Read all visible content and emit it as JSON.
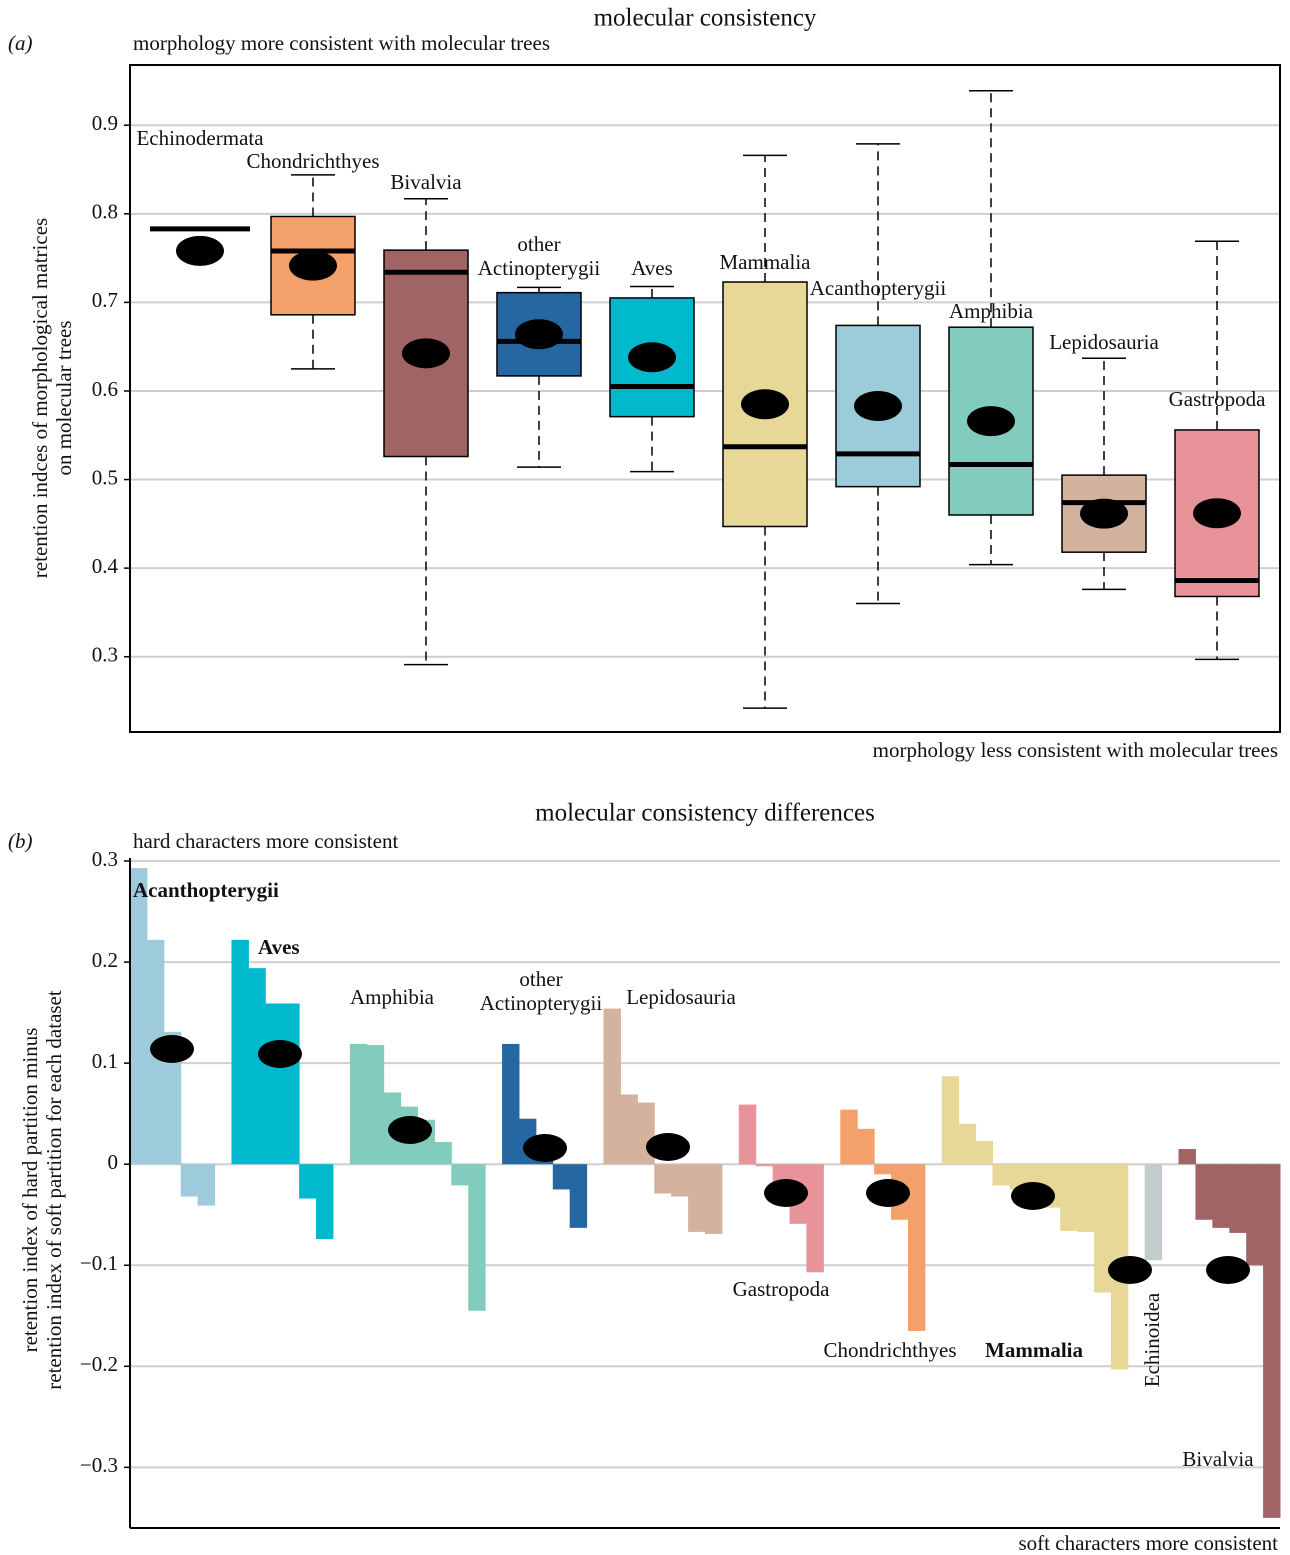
{
  "chart_data": [
    {
      "type": "box",
      "panel": "(a)",
      "title": "molecular consistency",
      "annotations": [
        "morphology more consistent with molecular trees",
        "morphology less consistent with molecular trees"
      ],
      "ylabel": "retention indces of morphological matrices\non molecular trees",
      "ylim": [
        0.215,
        0.968
      ],
      "yticks": [
        0.3,
        0.4,
        0.5,
        0.6,
        0.7,
        0.8,
        0.9
      ],
      "grid": true,
      "boxes": [
        {
          "name": "Echinodermata",
          "color": "#b9c6c6",
          "min": 0.783,
          "q1": 0.783,
          "median": 0.783,
          "q3": 0.783,
          "max": 0.783
        },
        {
          "name": "Chondrichthyes",
          "color": "#f4a06b",
          "min": 0.625,
          "q1": 0.686,
          "median": 0.758,
          "q3": 0.797,
          "max": 0.844
        },
        {
          "name": "Bivalvia",
          "color": "#a06464",
          "min": 0.291,
          "q1": 0.526,
          "median": 0.734,
          "q3": 0.759,
          "max": 0.817
        },
        {
          "name": "other\nActinopterygii",
          "color": "#2567a0",
          "min": 0.514,
          "q1": 0.617,
          "median": 0.656,
          "q3": 0.711,
          "max": 0.717
        },
        {
          "name": "Aves",
          "color": "#00b9cc",
          "min": 0.509,
          "q1": 0.571,
          "median": 0.605,
          "q3": 0.705,
          "max": 0.718
        },
        {
          "name": "Mammalia",
          "color": "#e8d898",
          "min": 0.242,
          "q1": 0.447,
          "median": 0.537,
          "q3": 0.723,
          "max": 0.866
        },
        {
          "name": "Acanthopterygii",
          "color": "#9ccbd9",
          "min": 0.36,
          "q1": 0.492,
          "median": 0.529,
          "q3": 0.674,
          "max": 0.879
        },
        {
          "name": "Amphibia",
          "color": "#82ccbd",
          "min": 0.404,
          "q1": 0.46,
          "median": 0.517,
          "q3": 0.672,
          "max": 0.939
        },
        {
          "name": "Lepidosauria",
          "color": "#d4b39e",
          "min": 0.376,
          "q1": 0.418,
          "median": 0.474,
          "q3": 0.505,
          "max": 0.637
        },
        {
          "name": "Gastropoda",
          "color": "#e8939a",
          "min": 0.297,
          "q1": 0.368,
          "median": 0.386,
          "q3": 0.556,
          "max": 0.769
        }
      ]
    },
    {
      "type": "bar",
      "panel": "(b)",
      "title": "molecular consistency differences",
      "annotations": [
        "hard characters more consistent",
        "soft characters more consistent"
      ],
      "ylabel": "retention index of hard partition minus\nretention index of soft partition for each dataset",
      "ylim": [
        -0.36,
        0.303
      ],
      "yticks": [
        {
          "value": -0.3,
          "label": "−0.3"
        },
        {
          "value": -0.2,
          "label": "−0.2"
        },
        {
          "value": -0.1,
          "label": "−0.1"
        },
        0,
        0.1,
        0.2,
        0.3
      ],
      "grid": true,
      "groups": [
        {
          "name": "Acanthopterygii",
          "color": "#9ecbdb",
          "bold": true,
          "values": [
            0.293,
            0.222,
            0.131,
            -0.032,
            -0.041
          ]
        },
        {
          "name": "Aves",
          "color": "#00b9cc",
          "bold": true,
          "values": [
            0.222,
            0.194,
            0.159,
            0.159,
            -0.034,
            -0.074
          ]
        },
        {
          "name": "Amphibia",
          "color": "#82ccbd",
          "bold": false,
          "values": [
            0.119,
            0.118,
            0.071,
            0.057,
            0.044,
            0.022,
            -0.021,
            -0.145
          ]
        },
        {
          "name": "other\nActinopterygii",
          "color": "#2567a0",
          "bold": false,
          "values": [
            0.119,
            0.045,
            0.018,
            -0.025,
            -0.063
          ]
        },
        {
          "name": "Lepidosauria",
          "color": "#d4b39e",
          "bold": false,
          "values": [
            0.154,
            0.069,
            0.061,
            -0.029,
            -0.032,
            -0.067,
            -0.069
          ]
        },
        {
          "name": "Gastropoda",
          "color": "#e8939a",
          "bold": false,
          "values": [
            0.059,
            -0.002,
            -0.028,
            -0.059,
            -0.107
          ]
        },
        {
          "name": "Chondrichthyes",
          "color": "#f4a06b",
          "bold": false,
          "values": [
            0.054,
            0.035,
            -0.01,
            -0.055,
            -0.165
          ]
        },
        {
          "name": "Mammalia",
          "color": "#e8d898",
          "bold": true,
          "values": [
            0.087,
            0.04,
            0.023,
            -0.021,
            -0.025,
            -0.034,
            -0.043,
            -0.066,
            -0.067,
            -0.127,
            -0.203
          ]
        },
        {
          "name": "Echinoidea",
          "color": "#c2cccc",
          "bold": false,
          "values": [
            -0.095
          ]
        },
        {
          "name": "Bivalvia",
          "color": "#a06464",
          "bold": false,
          "values": [
            0.015,
            -0.055,
            -0.063,
            -0.068,
            -0.1,
            -0.35
          ]
        }
      ]
    }
  ]
}
